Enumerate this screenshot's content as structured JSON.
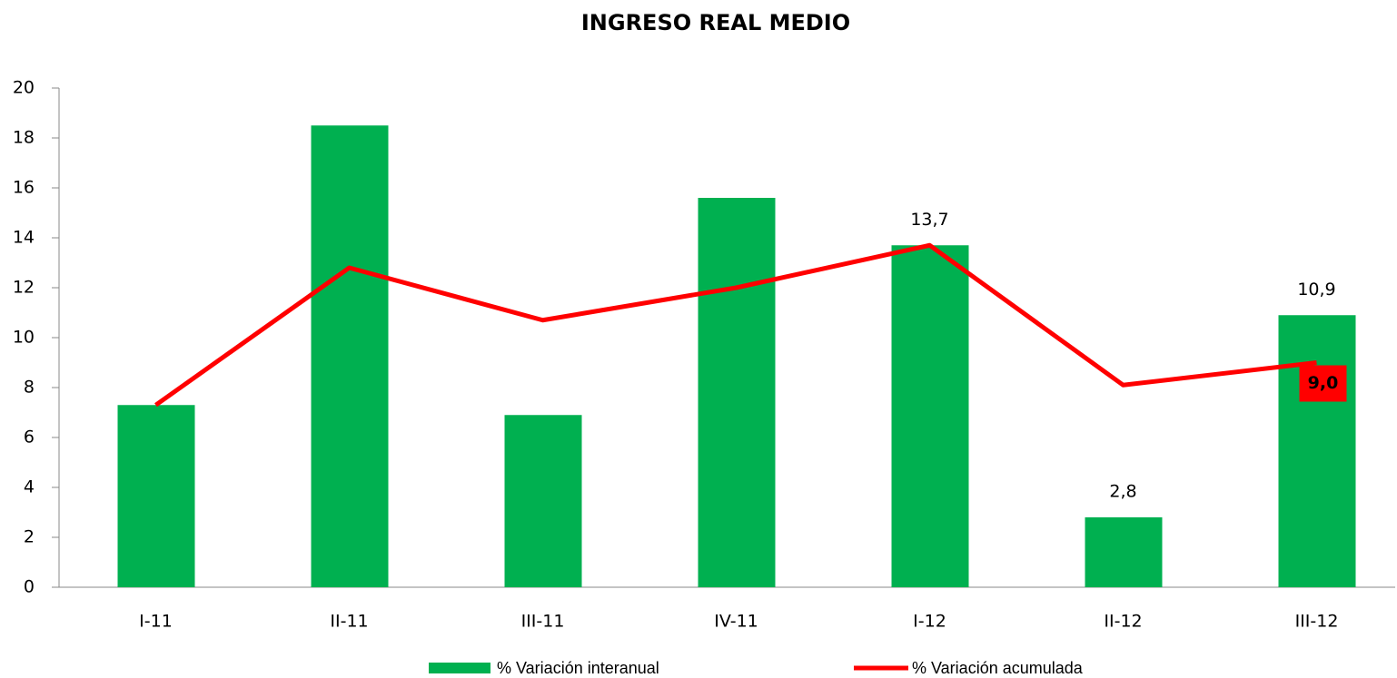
{
  "chart_data": {
    "type": "bar",
    "title": "INGRESO REAL MEDIO",
    "categories": [
      "I-11",
      "II-11",
      "III-11",
      "IV-11",
      "I-12",
      "II-12",
      "III-12"
    ],
    "series": [
      {
        "name": "% Variación interanual",
        "type": "bar",
        "color": "#00b050",
        "values": [
          7.3,
          18.5,
          6.9,
          15.6,
          13.7,
          2.8,
          10.9
        ],
        "value_labels": [
          null,
          null,
          null,
          null,
          "13,7",
          "2,8",
          "10,9"
        ]
      },
      {
        "name": "% Variación acumulada",
        "type": "line",
        "color": "#ff0000",
        "values": [
          7.3,
          12.8,
          10.7,
          12.0,
          13.7,
          8.1,
          9.0
        ],
        "value_labels": [
          null,
          null,
          null,
          null,
          null,
          null,
          "9,0"
        ]
      }
    ],
    "ylim": [
      0,
      20
    ],
    "yticks": [
      0,
      2,
      4,
      6,
      8,
      10,
      12,
      14,
      16,
      18,
      20
    ],
    "grid": false,
    "legend": "bottom"
  }
}
